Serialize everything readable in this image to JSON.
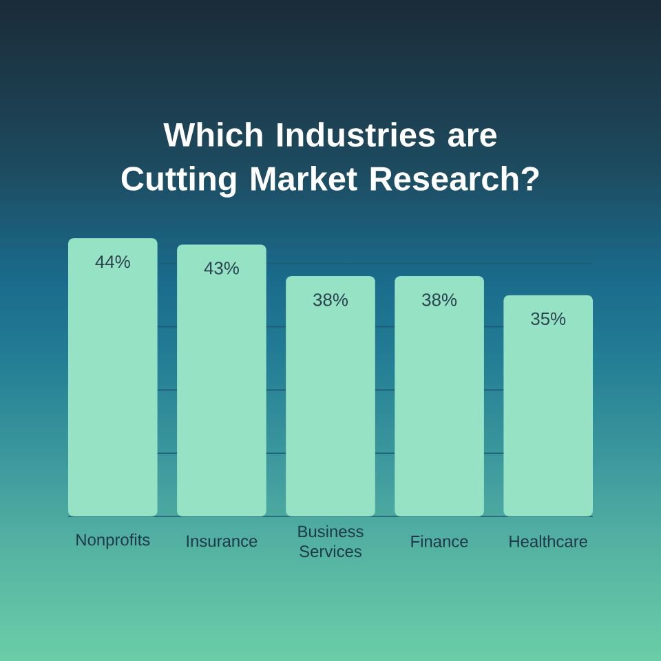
{
  "chart_data": {
    "type": "bar",
    "title": "Which Industries are Cutting Market Research?",
    "categories": [
      "Nonprofits",
      "Insurance",
      "Business Services",
      "Finance",
      "Healthcare"
    ],
    "values": [
      44,
      43,
      38,
      38,
      35
    ],
    "value_labels": [
      "44%",
      "43%",
      "38%",
      "38%",
      "35%"
    ],
    "color": "#95e2c5",
    "ylim": [
      0,
      44
    ],
    "yticks": [
      {
        "value": 0,
        "label": null
      },
      {
        "value": 10,
        "label": null
      },
      {
        "value": 20,
        "label": null
      },
      {
        "value": 30,
        "label": null
      },
      {
        "value": 40,
        "label": null
      }
    ],
    "grid": "y",
    "tick_labels": "x"
  }
}
